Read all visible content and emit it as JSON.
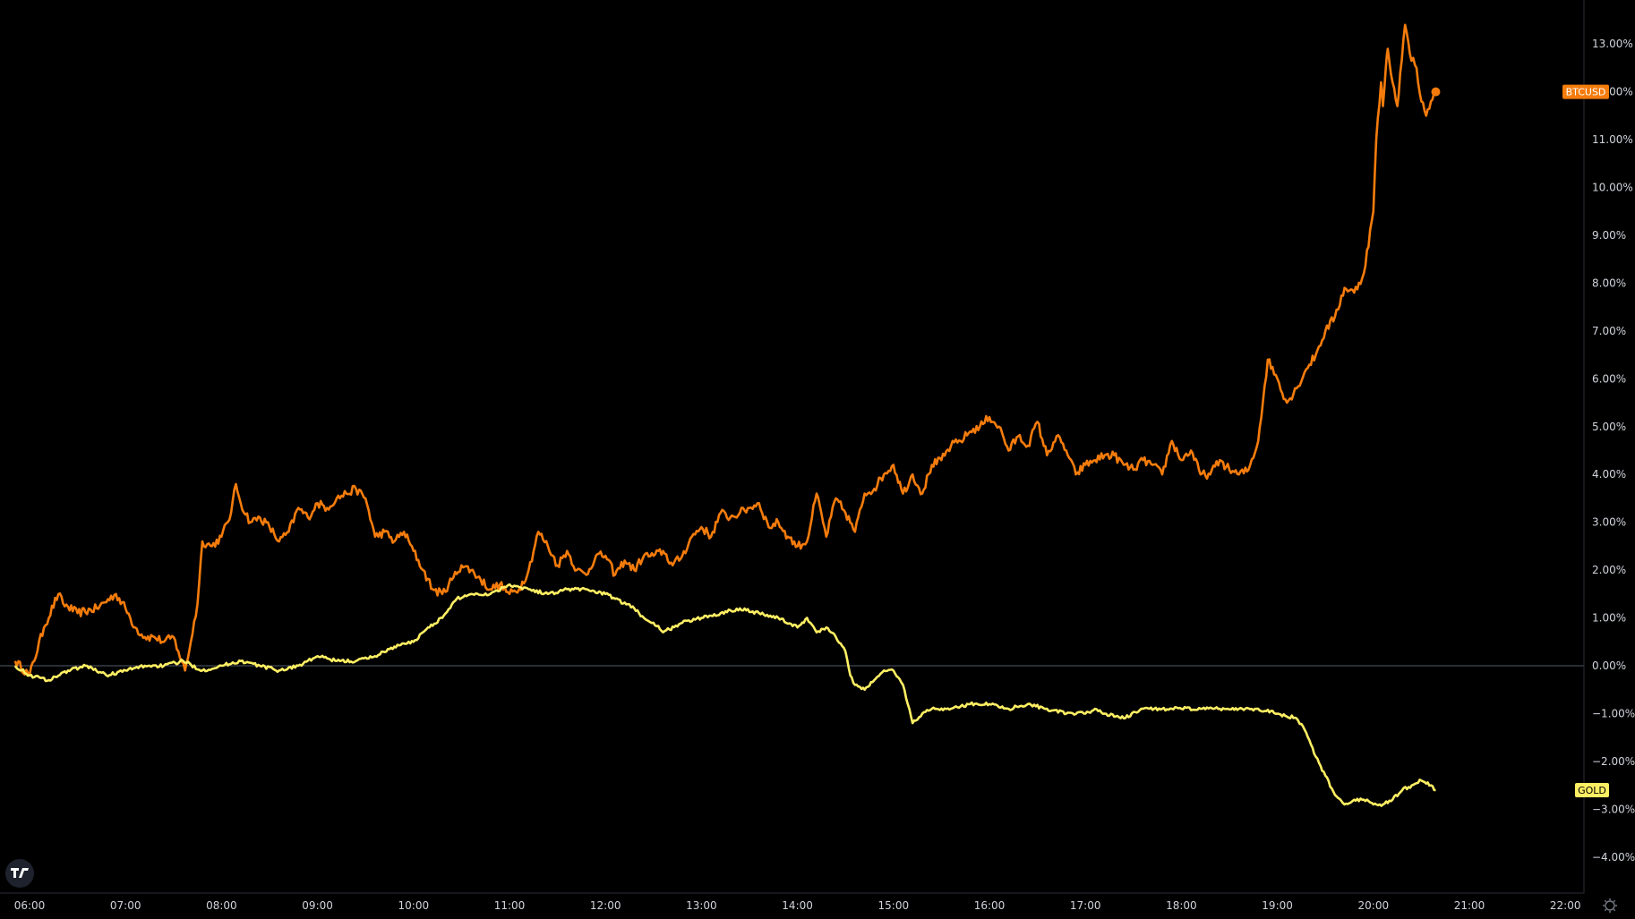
{
  "chart_data": {
    "type": "line",
    "ylim": [
      -4.7,
      13.9
    ],
    "y_ticks": [
      13,
      12,
      11,
      10,
      9,
      8,
      7,
      6,
      5,
      4,
      3,
      2,
      1,
      0,
      -1,
      -2,
      -3,
      -4
    ],
    "y_tick_labels": [
      "13.00%",
      "12.00%",
      "11.00%",
      "10.00%",
      "9.00%",
      "8.00%",
      "7.00%",
      "6.00%",
      "5.00%",
      "4.00%",
      "3.00%",
      "2.00%",
      "1.00%",
      "0.00%",
      "−1.00%",
      "−2.00%",
      "−3.00%",
      "−4.00%"
    ],
    "xlim": [
      5.85,
      22.35
    ],
    "x_ticks": [
      6,
      7,
      8,
      9,
      10,
      11,
      12,
      13,
      14,
      15,
      16,
      17,
      18,
      19,
      20,
      21,
      22
    ],
    "x_tick_labels": [
      "06:00",
      "07:00",
      "08:00",
      "09:00",
      "10:00",
      "11:00",
      "12:00",
      "13:00",
      "14:00",
      "15:00",
      "16:00",
      "17:00",
      "18:00",
      "19:00",
      "20:00",
      "21:00",
      "22:00"
    ],
    "zero_line": true,
    "series": [
      {
        "name": "BTCUSD",
        "color": "#f57c0c",
        "badge_text_color": "#ffffff",
        "x": [
          5.85,
          6.0,
          6.15,
          6.3,
          6.35,
          6.5,
          6.7,
          6.9,
          7.0,
          7.1,
          7.2,
          7.3,
          7.4,
          7.5,
          7.55,
          7.62,
          7.68,
          7.75,
          7.8,
          7.9,
          8.0,
          8.1,
          8.15,
          8.2,
          8.3,
          8.4,
          8.5,
          8.6,
          8.7,
          8.8,
          8.9,
          9.0,
          9.1,
          9.2,
          9.3,
          9.4,
          9.5,
          9.6,
          9.7,
          9.8,
          9.9,
          10.0,
          10.1,
          10.2,
          10.3,
          10.4,
          10.5,
          10.6,
          10.7,
          10.8,
          10.9,
          11.0,
          11.1,
          11.2,
          11.3,
          11.4,
          11.5,
          11.6,
          11.7,
          11.8,
          11.9,
          12.0,
          12.1,
          12.2,
          12.3,
          12.4,
          12.5,
          12.6,
          12.7,
          12.8,
          12.9,
          13.0,
          13.1,
          13.2,
          13.3,
          13.4,
          13.5,
          13.6,
          13.7,
          13.8,
          13.9,
          14.0,
          14.1,
          14.2,
          14.3,
          14.4,
          14.5,
          14.6,
          14.7,
          14.8,
          14.9,
          15.0,
          15.1,
          15.2,
          15.3,
          15.4,
          15.5,
          15.6,
          15.7,
          15.8,
          15.9,
          16.0,
          16.1,
          16.2,
          16.3,
          16.4,
          16.5,
          16.6,
          16.7,
          16.8,
          16.9,
          17.0,
          17.1,
          17.2,
          17.3,
          17.4,
          17.5,
          17.6,
          17.7,
          17.8,
          17.9,
          18.0,
          18.1,
          18.2,
          18.3,
          18.4,
          18.5,
          18.6,
          18.7,
          18.8,
          18.9,
          19.0,
          19.1,
          19.2,
          19.3,
          19.4,
          19.5,
          19.6,
          19.7,
          19.8,
          19.9,
          20.0,
          20.03,
          20.08,
          20.1,
          20.13,
          20.15,
          20.2,
          20.25,
          20.28,
          20.33,
          20.38,
          20.45,
          20.5,
          20.55,
          20.6,
          20.65
        ],
        "y": [
          0.1,
          -0.2,
          0.8,
          1.5,
          1.3,
          1.1,
          1.2,
          1.5,
          1.2,
          0.8,
          0.6,
          0.6,
          0.5,
          0.6,
          0.3,
          -0.1,
          0.5,
          1.3,
          2.6,
          2.5,
          2.7,
          3.2,
          3.8,
          3.4,
          3.0,
          3.1,
          2.9,
          2.6,
          2.8,
          3.3,
          3.1,
          3.4,
          3.3,
          3.5,
          3.6,
          3.7,
          3.5,
          2.7,
          2.8,
          2.6,
          2.8,
          2.4,
          2.0,
          1.6,
          1.5,
          1.8,
          2.1,
          2.0,
          1.8,
          1.6,
          1.7,
          1.5,
          1.6,
          2.0,
          2.8,
          2.5,
          2.1,
          2.4,
          2.0,
          1.9,
          2.3,
          2.3,
          1.9,
          2.2,
          2.0,
          2.3,
          2.3,
          2.4,
          2.1,
          2.3,
          2.7,
          2.9,
          2.7,
          3.2,
          3.1,
          3.2,
          3.3,
          3.4,
          2.9,
          3.0,
          2.7,
          2.5,
          2.6,
          3.6,
          2.7,
          3.5,
          3.2,
          2.8,
          3.6,
          3.7,
          4.0,
          4.2,
          3.6,
          4.0,
          3.6,
          4.2,
          4.3,
          4.6,
          4.7,
          4.9,
          5.0,
          5.2,
          5.0,
          4.5,
          4.8,
          4.6,
          5.1,
          4.4,
          4.8,
          4.5,
          4.0,
          4.2,
          4.3,
          4.4,
          4.4,
          4.2,
          4.1,
          4.3,
          4.2,
          4.0,
          4.7,
          4.3,
          4.5,
          4.0,
          4.0,
          4.3,
          4.1,
          4.0,
          4.1,
          4.7,
          6.4,
          6.0,
          5.5,
          5.8,
          6.2,
          6.5,
          7.0,
          7.3,
          7.9,
          7.8,
          8.2,
          9.5,
          11.0,
          12.2,
          11.7,
          12.5,
          12.9,
          12.2,
          11.7,
          12.4,
          13.4,
          12.8,
          12.5,
          11.8,
          11.5,
          11.8,
          12.0
        ],
        "last_value": 12.0,
        "show_end_dot": true
      },
      {
        "name": "GOLD",
        "color": "#ffef63",
        "badge_text_color": "#000000",
        "x": [
          5.85,
          6.0,
          6.2,
          6.4,
          6.6,
          6.8,
          7.0,
          7.2,
          7.4,
          7.6,
          7.8,
          8.0,
          8.2,
          8.4,
          8.6,
          8.8,
          9.0,
          9.2,
          9.4,
          9.6,
          9.8,
          10.0,
          10.15,
          10.3,
          10.45,
          10.6,
          10.8,
          11.0,
          11.2,
          11.4,
          11.6,
          11.8,
          12.0,
          12.1,
          12.3,
          12.4,
          12.5,
          12.6,
          12.8,
          13.0,
          13.2,
          13.4,
          13.6,
          13.8,
          14.0,
          14.1,
          14.2,
          14.3,
          14.4,
          14.5,
          14.55,
          14.6,
          14.7,
          14.8,
          14.9,
          15.0,
          15.1,
          15.2,
          15.3,
          15.4,
          15.6,
          15.8,
          16.0,
          16.2,
          16.4,
          16.6,
          16.8,
          17.0,
          17.1,
          17.2,
          17.4,
          17.6,
          17.8,
          18.0,
          18.2,
          18.4,
          18.6,
          18.8,
          19.0,
          19.2,
          19.3,
          19.4,
          19.5,
          19.6,
          19.7,
          19.8,
          19.9,
          20.0,
          20.1,
          20.2,
          20.3,
          20.4,
          20.5,
          20.6,
          20.65
        ],
        "y": [
          0.0,
          -0.2,
          -0.3,
          -0.1,
          0.0,
          -0.2,
          -0.1,
          0.0,
          0.0,
          0.1,
          -0.1,
          0.0,
          0.1,
          0.0,
          -0.1,
          0.0,
          0.2,
          0.1,
          0.1,
          0.2,
          0.4,
          0.5,
          0.8,
          1.0,
          1.4,
          1.5,
          1.5,
          1.7,
          1.6,
          1.5,
          1.6,
          1.6,
          1.5,
          1.4,
          1.2,
          1.0,
          0.9,
          0.7,
          0.9,
          1.0,
          1.1,
          1.2,
          1.1,
          1.0,
          0.8,
          1.0,
          0.7,
          0.8,
          0.6,
          0.3,
          -0.2,
          -0.4,
          -0.5,
          -0.3,
          -0.1,
          -0.1,
          -0.4,
          -1.2,
          -1.0,
          -0.9,
          -0.9,
          -0.8,
          -0.8,
          -0.9,
          -0.8,
          -0.9,
          -1.0,
          -1.0,
          -0.9,
          -1.0,
          -1.1,
          -0.9,
          -0.9,
          -0.9,
          -0.9,
          -0.9,
          -0.9,
          -0.9,
          -1.0,
          -1.1,
          -1.4,
          -1.9,
          -2.3,
          -2.7,
          -2.9,
          -2.8,
          -2.8,
          -2.9,
          -2.9,
          -2.8,
          -2.6,
          -2.5,
          -2.4,
          -2.5,
          -2.6
        ],
        "last_value": -2.6,
        "show_end_dot": false
      }
    ]
  }
}
